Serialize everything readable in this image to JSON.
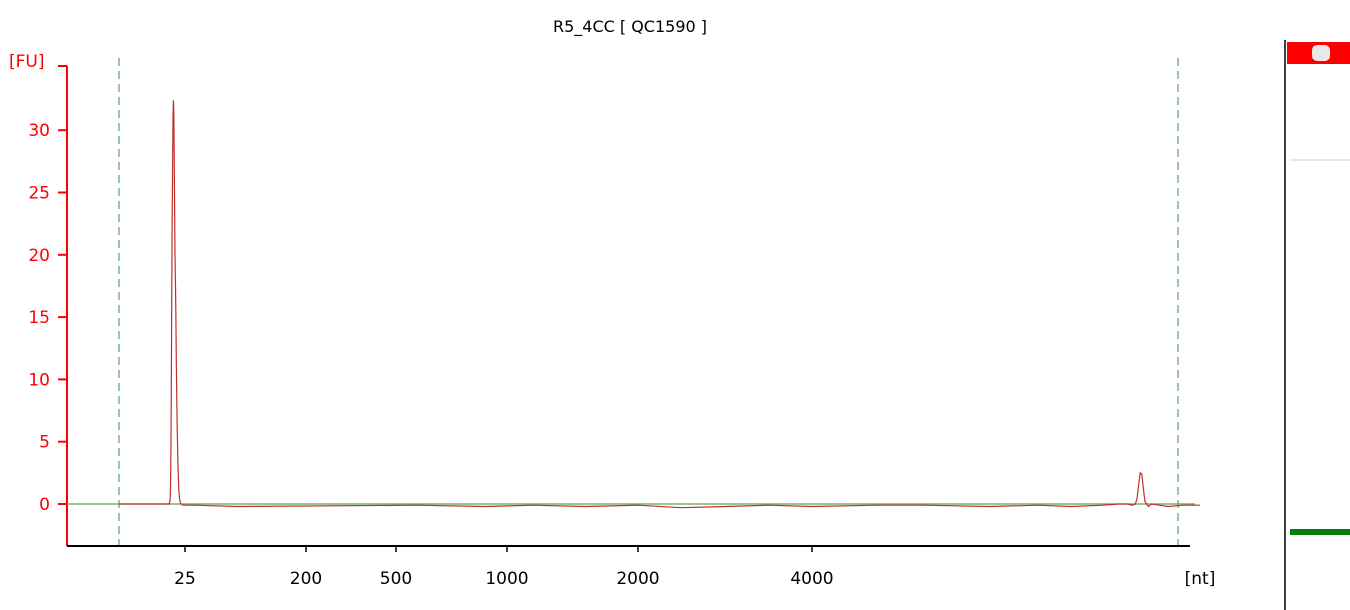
{
  "chart_data": {
    "type": "line",
    "title": "R5_4CC  [ QC1590 ]",
    "ylabel": "[FU]",
    "xlabel": "[nt]",
    "ylim": [
      -3.5,
      35
    ],
    "yticks": [
      0,
      5,
      10,
      15,
      20,
      25,
      30
    ],
    "xticks": [
      "25",
      "200",
      "500",
      "1000",
      "2000",
      "4000"
    ],
    "grid": false,
    "colors": {
      "axis": "#ff0000",
      "trace": "#c0302a",
      "baseline": "#5aa05a",
      "marker_lines": "#3d8c3d",
      "gel_top_band": "#ff0000",
      "gel_marker_band": "#0a7a0a"
    },
    "series": [
      {
        "x": [
          -16,
          -13,
          -11,
          -10,
          -9,
          -8,
          -7,
          -6,
          -5,
          -4,
          -3,
          -2,
          -1,
          0,
          1,
          2,
          3,
          4,
          6,
          8,
          10,
          12,
          14,
          16,
          20,
          40,
          100,
          600,
          900,
          1200,
          1600,
          2000,
          2500,
          3000,
          3500,
          4000,
          4400,
          4700,
          5100,
          5400,
          5600,
          5800,
          5900,
          5950,
          5980,
          6000,
          6010,
          6020,
          6030,
          6040,
          6050,
          6060,
          6070,
          6080,
          6100,
          6150,
          6200,
          6300,
          6400
        ],
        "y": [
          0,
          0,
          0.3,
          1.2,
          4,
          9,
          16,
          22,
          27,
          31,
          32.4,
          31.5,
          28,
          24,
          20,
          17.5,
          15,
          11.5,
          6.5,
          3,
          1.2,
          0.4,
          0.1,
          0,
          -0.1,
          -0.1,
          -0.2,
          -0.1,
          -0.2,
          -0.1,
          -0.2,
          -0.1,
          -0.3,
          -0.2,
          -0.1,
          -0.2,
          -0.1,
          -0.1,
          -0.2,
          -0.1,
          -0.2,
          -0.1,
          0,
          0,
          -0.1,
          0,
          0.4,
          1.5,
          2.5,
          2.4,
          1.2,
          0.2,
          0,
          -0.2,
          0,
          -0.1,
          -0.2,
          -0.1,
          -0.1
        ]
      }
    ]
  },
  "side_panel": {
    "gel_band_top_color": "#ff0000",
    "gel_band_marker_color": "#0a7a0a"
  }
}
